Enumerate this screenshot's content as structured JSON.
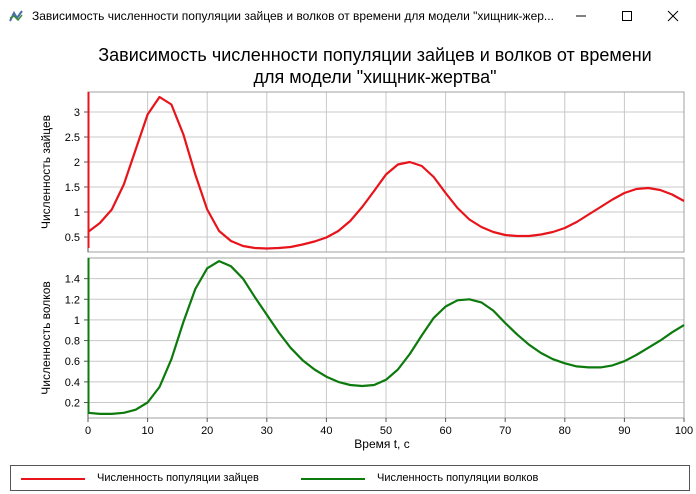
{
  "window": {
    "title": "Зависимость численности популяции зайцев и волков от времени для модели \"хищник-жер...",
    "icon": "chart-app-icon",
    "buttons": [
      "minimize-icon",
      "maximize-icon",
      "close-icon"
    ]
  },
  "chart_data": {
    "type": "line",
    "title_line1": "Зависимость численности популяции зайцев и волков от времени",
    "title_line2": "для модели \"хищник-жертва\"",
    "xlabel": "Время t, с",
    "xlim": [
      0,
      100
    ],
    "xticks": [
      0,
      10,
      20,
      30,
      40,
      50,
      60,
      70,
      80,
      90,
      100
    ],
    "panels": [
      {
        "ylabel": "Численность зайцев",
        "ylim": [
          0.2,
          3.4
        ],
        "yticks": [
          "0.5",
          "1",
          "1.5",
          "2",
          "2.5",
          "3"
        ],
        "series": {
          "name": "Численность популяции зайцев",
          "color": "#e8141b",
          "x": [
            0,
            2,
            4,
            6,
            8,
            10,
            12,
            14,
            16,
            18,
            20,
            22,
            24,
            26,
            28,
            30,
            32,
            34,
            36,
            38,
            40,
            42,
            44,
            46,
            48,
            50,
            52,
            54,
            56,
            58,
            60,
            62,
            64,
            66,
            68,
            70,
            72,
            74,
            76,
            78,
            80,
            82,
            84,
            86,
            88,
            90,
            92,
            94,
            96,
            98,
            100
          ],
          "y": [
            0.6,
            0.78,
            1.05,
            1.55,
            2.25,
            2.95,
            3.3,
            3.15,
            2.55,
            1.75,
            1.05,
            0.62,
            0.42,
            0.32,
            0.28,
            0.27,
            0.28,
            0.3,
            0.35,
            0.41,
            0.49,
            0.62,
            0.82,
            1.1,
            1.42,
            1.75,
            1.95,
            2.0,
            1.92,
            1.7,
            1.38,
            1.08,
            0.85,
            0.7,
            0.6,
            0.54,
            0.52,
            0.52,
            0.55,
            0.6,
            0.68,
            0.8,
            0.95,
            1.1,
            1.25,
            1.38,
            1.46,
            1.48,
            1.44,
            1.35,
            1.22
          ]
        }
      },
      {
        "ylabel": "Численность волков",
        "ylim": [
          0.05,
          1.6
        ],
        "yticks": [
          "0.2",
          "0.4",
          "0.6",
          "0.8",
          "1",
          "1.2",
          "1.4"
        ],
        "series": {
          "name": "Численность популяции волков",
          "color": "#0d7a0d",
          "x": [
            0,
            2,
            4,
            6,
            8,
            10,
            12,
            14,
            16,
            18,
            20,
            22,
            24,
            26,
            28,
            30,
            32,
            34,
            36,
            38,
            40,
            42,
            44,
            46,
            48,
            50,
            52,
            54,
            56,
            58,
            60,
            62,
            64,
            66,
            68,
            70,
            72,
            74,
            76,
            78,
            80,
            82,
            84,
            86,
            88,
            90,
            92,
            94,
            96,
            98,
            100
          ],
          "y": [
            0.1,
            0.09,
            0.09,
            0.1,
            0.13,
            0.2,
            0.35,
            0.62,
            0.98,
            1.3,
            1.5,
            1.57,
            1.52,
            1.4,
            1.22,
            1.05,
            0.88,
            0.73,
            0.61,
            0.52,
            0.45,
            0.4,
            0.37,
            0.36,
            0.37,
            0.42,
            0.52,
            0.67,
            0.85,
            1.02,
            1.13,
            1.19,
            1.2,
            1.17,
            1.09,
            0.97,
            0.86,
            0.76,
            0.68,
            0.62,
            0.58,
            0.55,
            0.54,
            0.54,
            0.56,
            0.6,
            0.66,
            0.73,
            0.8,
            0.88,
            0.95
          ]
        }
      }
    ],
    "grid": true,
    "legend": "bottom"
  }
}
